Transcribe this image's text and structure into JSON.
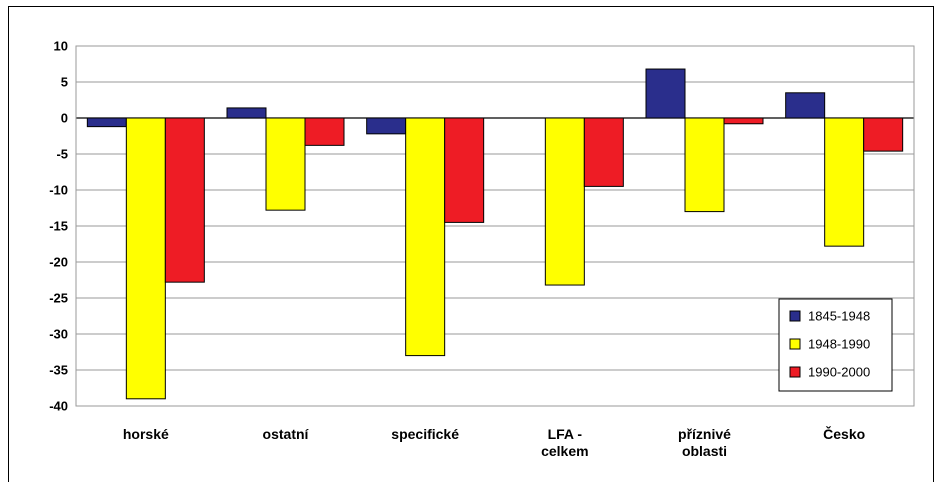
{
  "chart_data": {
    "type": "bar",
    "categories": [
      [
        "horské"
      ],
      [
        "ostatní"
      ],
      [
        "specifické"
      ],
      [
        "LFA -",
        "celkem"
      ],
      [
        "příznivé",
        "oblasti"
      ],
      [
        "Česko"
      ]
    ],
    "series": [
      {
        "name": "1845-1948",
        "color": "#2a2e8c",
        "values": [
          -1.2,
          1.4,
          -2.2,
          null,
          6.8,
          3.5
        ]
      },
      {
        "name": "1948-1990",
        "color": "#ffff00",
        "values": [
          -39,
          -12.8,
          -33,
          -23.2,
          -13,
          -17.8
        ]
      },
      {
        "name": "1990-2000",
        "color": "#ee1c25",
        "values": [
          -22.8,
          -3.8,
          -14.5,
          -9.5,
          -0.8,
          -4.6
        ]
      }
    ],
    "ylim": [
      -40,
      10
    ],
    "yticks": [
      "10",
      "5",
      "0",
      "-5",
      "-10",
      "-15",
      "-20",
      "-25",
      "-30",
      "-35",
      "-40"
    ],
    "grid": true,
    "legend_position": "right"
  }
}
